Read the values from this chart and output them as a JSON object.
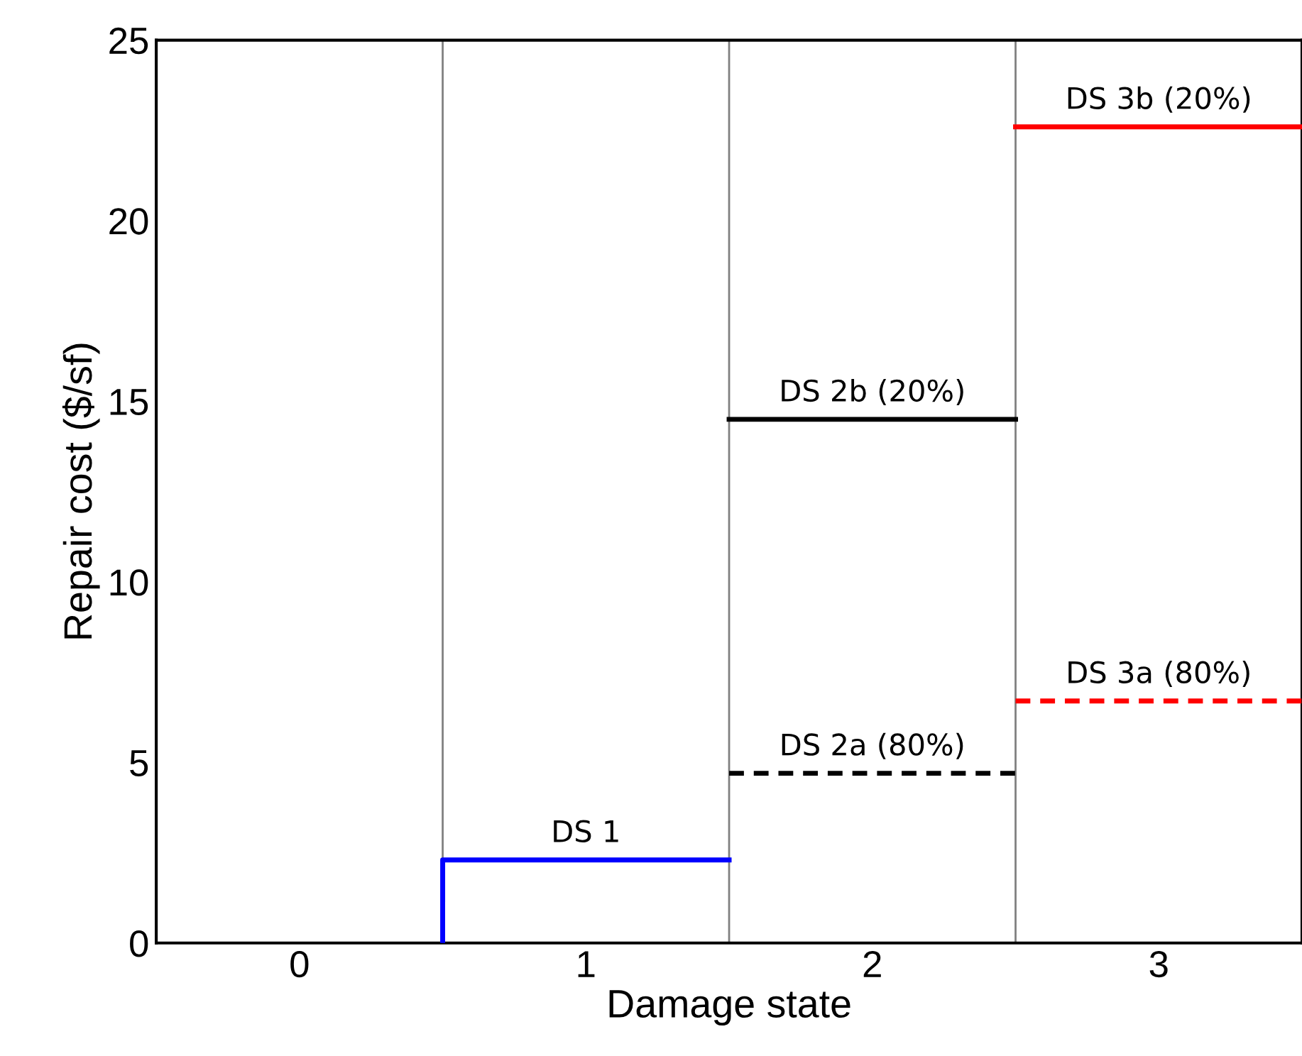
{
  "chart_data": {
    "type": "line",
    "xlabel": "Damage state",
    "ylabel": "Repair cost ($/sf)",
    "xlim": [
      -0.5,
      3.5
    ],
    "xticks": [
      0,
      1,
      2,
      3
    ],
    "ylim": [
      0,
      25
    ],
    "yticks": [
      0,
      5,
      10,
      15,
      20,
      25
    ],
    "grid": false,
    "legend": false,
    "marker": "none",
    "series": [
      {
        "name": "DS 1",
        "color": "#0000ff",
        "x": [
          0.5,
          0.5,
          1.5
        ],
        "values": [
          0,
          2.3,
          2.3
        ],
        "line_style": "solid"
      },
      {
        "name": "DS 2a (80%)",
        "color": "#000000",
        "x": [
          1.5,
          2.5
        ],
        "values": [
          4.7,
          4.7
        ],
        "line_style": "dashed"
      },
      {
        "name": "DS 2b (20%)",
        "color": "#000000",
        "x": [
          1.5,
          2.5
        ],
        "values": [
          14.5,
          14.5
        ],
        "line_style": "solid"
      },
      {
        "name": "DS 3a (80%)",
        "color": "#ff0000",
        "x": [
          2.5,
          3.5
        ],
        "values": [
          6.7,
          6.7
        ],
        "line_style": "dashed"
      },
      {
        "name": "DS 3b (20%)",
        "color": "#ff0000",
        "x": [
          2.5,
          3.5
        ],
        "values": [
          22.6,
          22.6
        ],
        "line_style": "solid"
      }
    ],
    "ref_lines": [
      {
        "axis": "x",
        "value": 0.5,
        "label": null,
        "color": "#808080"
      },
      {
        "axis": "x",
        "value": 1.5,
        "label": null,
        "color": "#808080"
      },
      {
        "axis": "x",
        "value": 2.5,
        "label": null,
        "color": "#808080"
      }
    ]
  }
}
